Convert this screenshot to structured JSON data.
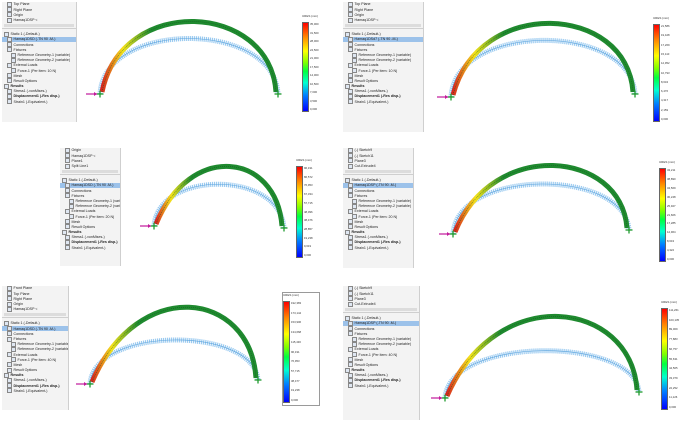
{
  "colors": {
    "deformed_green": "#1f8a2f",
    "deformed_yellow": "#f3e21b",
    "deformed_red": "#d7261e",
    "undeformed_blue": "#8fc4ee",
    "fixture_green": "#1e9a2e",
    "load_magenta": "#c2189b",
    "legend_top": "#ff0000",
    "legend_bottom": "#0000ff"
  },
  "panels": [
    {
      "tree": [
        {
          "label": "Top Plane",
          "level": 1
        },
        {
          "label": "Right Plane",
          "level": 1
        },
        {
          "label": "Origin",
          "level": 1
        },
        {
          "label": "Hamaq1DSP <",
          "level": 1
        },
        {
          "label": "",
          "level": 0,
          "kind": "scroll"
        },
        {
          "label": "",
          "level": 0,
          "kind": "gap"
        },
        {
          "label": "Static 1 (-Default-)",
          "level": 0
        },
        {
          "label": "Hamaq1DSD (-TN 90 -M-)",
          "level": 1,
          "selected": true
        },
        {
          "label": "Connections",
          "level": 1
        },
        {
          "label": "Fixtures",
          "level": 1
        },
        {
          "label": "Reference Geometry-1 (variable)",
          "level": 2
        },
        {
          "label": "Reference Geometry-2 (variable)",
          "level": 2
        },
        {
          "label": "External Loads",
          "level": 1
        },
        {
          "label": "Force-1 (Per item: 10 N)",
          "level": 2
        },
        {
          "label": "Mesh",
          "level": 1
        },
        {
          "label": "Result Options",
          "level": 1
        },
        {
          "label": "Results",
          "level": 0,
          "bold": true
        },
        {
          "label": "Stress1 (-vonMises-)",
          "level": 1
        },
        {
          "label": "Displacement1 (-Res disp-)",
          "level": 1,
          "bold": true
        },
        {
          "label": "Strain1 (-Equivalent-)",
          "level": 1
        }
      ],
      "legend_title": "URES (mm)",
      "legend_ticks": [
        "35,000",
        "31,500",
        "28,000",
        "24,500",
        "21,000",
        "17,500",
        "14,000",
        "10,500",
        "7,000",
        "3,500",
        "0,000"
      ]
    },
    {
      "tree": [
        {
          "label": "Top Plane",
          "level": 1
        },
        {
          "label": "Right Plane",
          "level": 1
        },
        {
          "label": "Origin",
          "level": 1
        },
        {
          "label": "Hamaq1DSP <",
          "level": 1
        },
        {
          "label": "",
          "level": 0,
          "kind": "scroll"
        },
        {
          "label": "",
          "level": 0,
          "kind": "gap"
        },
        {
          "label": "Static 1 (-Default-)",
          "level": 0
        },
        {
          "label": "Hamaq1DSd7 (-TN 90 -M-)",
          "level": 1,
          "selected": true
        },
        {
          "label": "Connections",
          "level": 1
        },
        {
          "label": "Fixtures",
          "level": 1
        },
        {
          "label": "Reference Geometry-1 (variable)",
          "level": 2
        },
        {
          "label": "Reference Geometry-2 (variable)",
          "level": 2
        },
        {
          "label": "External Loads",
          "level": 1
        },
        {
          "label": "Force-1 (Per item: 10 N)",
          "level": 2
        },
        {
          "label": "Mesh",
          "level": 1
        },
        {
          "label": "Result Options",
          "level": 1
        },
        {
          "label": "Results",
          "level": 0,
          "bold": true
        },
        {
          "label": "Stress1 (-vonMises-)",
          "level": 1
        },
        {
          "label": "Displacement1 (-Res disp-)",
          "level": 1,
          "bold": true
        },
        {
          "label": "Strain1 (-Equivalent-)",
          "level": 1
        }
      ],
      "legend_title": "URES (mm)",
      "legend_ticks": [
        "21,586",
        "19,428",
        "17,269",
        "15,110",
        "12,952",
        "10,793",
        "8,634",
        "6,476",
        "4,317",
        "2,159",
        "0,000"
      ]
    },
    {
      "tree": [
        {
          "label": "Origin",
          "level": 1
        },
        {
          "label": "Hamaq1DSP <",
          "level": 1
        },
        {
          "label": "Plane1",
          "level": 1
        },
        {
          "label": "Split Line1",
          "level": 1
        },
        {
          "label": "",
          "level": 0,
          "kind": "scroll"
        },
        {
          "label": "",
          "level": 0,
          "kind": "gap"
        },
        {
          "label": "Static 1 (-Default-)",
          "level": 0
        },
        {
          "label": "Hamaq1DSD (-TN 90 -M-)",
          "level": 1,
          "selected": true
        },
        {
          "label": "Connections",
          "level": 1
        },
        {
          "label": "Fixtures",
          "level": 1
        },
        {
          "label": "Reference Geometry-1 (variable)",
          "level": 2
        },
        {
          "label": "Reference Geometry-2 (variable)",
          "level": 2
        },
        {
          "label": "External Loads",
          "level": 1
        },
        {
          "label": "Force-1 (Per item: 20 N)",
          "level": 2
        },
        {
          "label": "Mesh",
          "level": 1
        },
        {
          "label": "Result Options",
          "level": 1
        },
        {
          "label": "Results",
          "level": 0,
          "bold": true
        },
        {
          "label": "Stress1 (-vonMises-)",
          "level": 1
        },
        {
          "label": "Displacement1 (-Res disp-)",
          "level": 1,
          "bold": true
        },
        {
          "label": "Strain1 (-Equivalent-)",
          "level": 1
        }
      ],
      "legend_title": "URES (mm)",
      "legend_ticks": [
        "96,191",
        "86,572",
        "76,953",
        "67,334",
        "57,715",
        "48,096",
        "38,476",
        "28,857",
        "19,238",
        "9,619",
        "0,000"
      ]
    },
    {
      "tree": [
        {
          "label": "(-) Sketch9",
          "level": 1
        },
        {
          "label": "(-) Sketch11",
          "level": 1
        },
        {
          "label": "Plane3",
          "level": 1
        },
        {
          "label": "Cut-Extrude4",
          "level": 1
        },
        {
          "label": "",
          "level": 0,
          "kind": "scroll"
        },
        {
          "label": "",
          "level": 0,
          "kind": "gap"
        },
        {
          "label": "Static 1 (-Default-)",
          "level": 0
        },
        {
          "label": "Hamaq1DSP (-TN 90 -M-)",
          "level": 1,
          "selected": true
        },
        {
          "label": "Connections",
          "level": 1
        },
        {
          "label": "Fixtures",
          "level": 1
        },
        {
          "label": "Reference Geometry-1 (variable)",
          "level": 2
        },
        {
          "label": "Reference Geometry-2 (variable)",
          "level": 2
        },
        {
          "label": "External Loads",
          "level": 1
        },
        {
          "label": "Force-1 (Per item: 20 N)",
          "level": 2
        },
        {
          "label": "Mesh",
          "level": 1
        },
        {
          "label": "Result Options",
          "level": 1
        },
        {
          "label": "Results",
          "level": 0,
          "bold": true
        },
        {
          "label": "Stress1 (-vonMises-)",
          "level": 1
        },
        {
          "label": "Displacement1 (-Res disp-)",
          "level": 1,
          "bold": true
        },
        {
          "label": "Strain1 (-Equivalent-)",
          "level": 1
        }
      ],
      "legend_title": "URES (mm)",
      "legend_ticks": [
        "43,211",
        "38,890",
        "34,569",
        "30,248",
        "25,927",
        "21,606",
        "17,285",
        "12,964",
        "8,643",
        "4,322",
        "0,000"
      ]
    },
    {
      "tree": [
        {
          "label": "Front Plane",
          "level": 1
        },
        {
          "label": "Top Plane",
          "level": 1
        },
        {
          "label": "Right Plane",
          "level": 1
        },
        {
          "label": "Origin",
          "level": 1
        },
        {
          "label": "Hamaq1DSP <",
          "level": 1
        },
        {
          "label": "",
          "level": 0,
          "kind": "scroll"
        },
        {
          "label": "",
          "level": 0,
          "kind": "gap"
        },
        {
          "label": "Static 1 (-Default-)",
          "level": 0
        },
        {
          "label": "Hamaq1DSD (-TN 90 -M-)",
          "level": 1,
          "selected": true
        },
        {
          "label": "Connections",
          "level": 1
        },
        {
          "label": "Fixtures",
          "level": 1
        },
        {
          "label": "Reference Geometry-1 (variable)",
          "level": 2
        },
        {
          "label": "Reference Geometry-2 (variable)",
          "level": 2
        },
        {
          "label": "External Loads",
          "level": 1
        },
        {
          "label": "Force-1 (Per item: 40 N)",
          "level": 2
        },
        {
          "label": "Mesh",
          "level": 1
        },
        {
          "label": "Result Options",
          "level": 1
        },
        {
          "label": "Results",
          "level": 0,
          "bold": true
        },
        {
          "label": "Stress1 (-vonMises-)",
          "level": 1
        },
        {
          "label": "Displacement1 (-Res disp-)",
          "level": 1,
          "bold": true
        },
        {
          "label": "Strain1 (-Equivalent-)",
          "level": 1
        }
      ],
      "legend_title": "URES (mm)",
      "legend_ticks": [
        "192,383",
        "173,144",
        "153,906",
        "134,668",
        "115,430",
        "96,191",
        "76,953",
        "57,715",
        "38,477",
        "19,238",
        "0,000"
      ]
    },
    {
      "tree": [
        {
          "label": "(-) Sketch9",
          "level": 1
        },
        {
          "label": "(-) Sketch11",
          "level": 1
        },
        {
          "label": "Plane3",
          "level": 1
        },
        {
          "label": "Cut-Extrude4",
          "level": 1
        },
        {
          "label": "",
          "level": 0,
          "kind": "scroll"
        },
        {
          "label": "",
          "level": 0,
          "kind": "gap"
        },
        {
          "label": "Static 1 (-Default-)",
          "level": 0
        },
        {
          "label": "Hamaq1DSP (-TN 90 -M-)",
          "level": 1,
          "selected": true
        },
        {
          "label": "Connections",
          "level": 1
        },
        {
          "label": "Fixtures",
          "level": 1
        },
        {
          "label": "Reference Geometry-1 (variable)",
          "level": 2
        },
        {
          "label": "Reference Geometry-2 (variable)",
          "level": 2
        },
        {
          "label": "External Loads",
          "level": 1
        },
        {
          "label": "Force-1 (Per item: 40 N)",
          "level": 2
        },
        {
          "label": "Mesh",
          "level": 1
        },
        {
          "label": "Result Options",
          "level": 1
        },
        {
          "label": "Results",
          "level": 0,
          "bold": true
        },
        {
          "label": "Stress1 (-vonMises-)",
          "level": 1
        },
        {
          "label": "Displacement1 (-Res disp-)",
          "level": 1,
          "bold": true
        },
        {
          "label": "Strain1 (-Equivalent-)",
          "level": 1
        }
      ],
      "legend_title": "URES (mm)",
      "legend_ticks": [
        "111,261",
        "100,135",
        "89,009",
        "77,883",
        "66,757",
        "55,631",
        "44,505",
        "33,379",
        "22,252",
        "11,126",
        "0,000"
      ]
    }
  ]
}
